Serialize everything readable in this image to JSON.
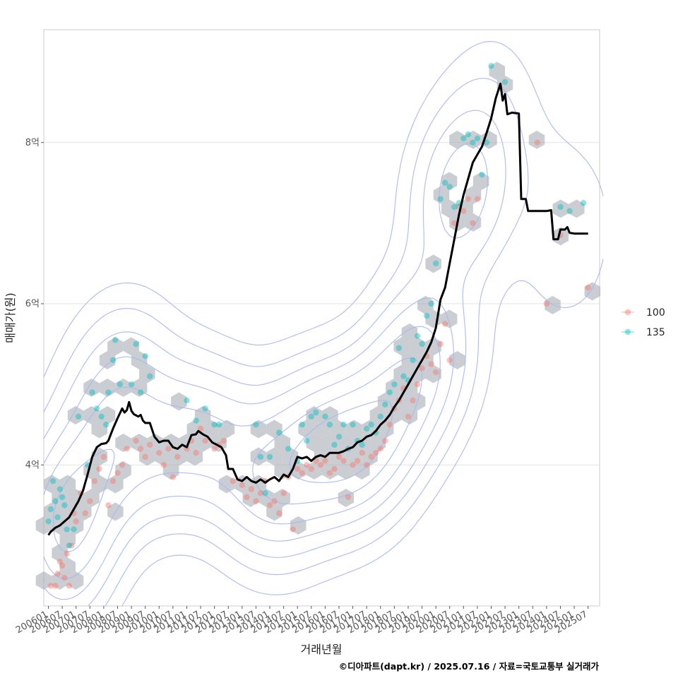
{
  "chart_data": {
    "type": "scatter",
    "title": "",
    "xlabel": "거래년월",
    "ylabel": "매매가(원)",
    "caption": "©디아파트(dapt.kr) / 2025.07.16 / 자료=국토교통부 실거래가",
    "x_tick_labels": [
      "200601",
      "200607",
      "200701",
      "200707",
      "200801",
      "200807",
      "200901",
      "200907",
      "201001",
      "201007",
      "201101",
      "201107",
      "201201",
      "201207",
      "201301",
      "201307",
      "201401",
      "201407",
      "201501",
      "201507",
      "201601",
      "201607",
      "201701",
      "201707",
      "201801",
      "201807",
      "201901",
      "201907",
      "202001",
      "202007",
      "202101",
      "202107",
      "202201",
      "202207",
      "202301",
      "202307",
      "202401",
      "202407",
      "202501",
      "202507"
    ],
    "x_range": [
      "2005-11",
      "2025-12"
    ],
    "y_ticks": [
      4,
      6,
      8
    ],
    "y_tick_labels": [
      "4억",
      "6억",
      "8억"
    ],
    "y_unit": "억원",
    "ylim": [
      2.25,
      9.4
    ],
    "grid": true,
    "legend_position": "right",
    "series": [
      {
        "name": "100",
        "color": "#F8766D",
        "points": [
          [
            "2006-02",
            2.5
          ],
          [
            "2006-04",
            2.5
          ],
          [
            "2006-05",
            2.65
          ],
          [
            "2006-06",
            2.8
          ],
          [
            "2006-07",
            2.75
          ],
          [
            "2006-08",
            2.6
          ],
          [
            "2006-09",
            2.9
          ],
          [
            "2006-10",
            2.5
          ],
          [
            "2006-11",
            3.0
          ],
          [
            "2006-12",
            3.4
          ],
          [
            "2007-01",
            3.3
          ],
          [
            "2007-03",
            3.65
          ],
          [
            "2007-05",
            3.4
          ],
          [
            "2007-07",
            3.55
          ],
          [
            "2007-09",
            3.8
          ],
          [
            "2007-11",
            3.95
          ],
          [
            "2008-01",
            4.1
          ],
          [
            "2008-03",
            3.5
          ],
          [
            "2008-05",
            3.8
          ],
          [
            "2008-07",
            3.9
          ],
          [
            "2008-09",
            4.0
          ],
          [
            "2008-11",
            4.2
          ],
          [
            "2009-03",
            4.3
          ],
          [
            "2009-05",
            4.2
          ],
          [
            "2009-07",
            4.1
          ],
          [
            "2009-09",
            4.25
          ],
          [
            "2010-01",
            4.15
          ],
          [
            "2010-03",
            4.0
          ],
          [
            "2010-05",
            4.2
          ],
          [
            "2010-07",
            3.85
          ],
          [
            "2010-09",
            4.1
          ],
          [
            "2011-01",
            4.2
          ],
          [
            "2011-03",
            4.3
          ],
          [
            "2011-05",
            4.15
          ],
          [
            "2011-07",
            4.45
          ],
          [
            "2011-09",
            4.3
          ],
          [
            "2012-01",
            4.2
          ],
          [
            "2012-03",
            4.25
          ],
          [
            "2012-05",
            4.3
          ],
          [
            "2012-09",
            3.8
          ],
          [
            "2013-01",
            3.75
          ],
          [
            "2013-03",
            3.6
          ],
          [
            "2013-05",
            3.7
          ],
          [
            "2013-07",
            3.55
          ],
          [
            "2013-09",
            3.65
          ],
          [
            "2013-11",
            3.8
          ],
          [
            "2014-01",
            3.5
          ],
          [
            "2014-03",
            3.55
          ],
          [
            "2014-05",
            3.4
          ],
          [
            "2014-07",
            3.65
          ],
          [
            "2014-09",
            3.85
          ],
          [
            "2014-11",
            3.2
          ],
          [
            "2015-01",
            3.95
          ],
          [
            "2015-03",
            3.9
          ],
          [
            "2015-05",
            4.0
          ],
          [
            "2015-07",
            3.95
          ],
          [
            "2015-09",
            4.05
          ],
          [
            "2015-11",
            4.0
          ],
          [
            "2016-01",
            4.05
          ],
          [
            "2016-03",
            3.9
          ],
          [
            "2016-05",
            3.95
          ],
          [
            "2016-07",
            4.1
          ],
          [
            "2016-09",
            4.05
          ],
          [
            "2016-11",
            3.6
          ],
          [
            "2017-01",
            4.0
          ],
          [
            "2017-03",
            4.05
          ],
          [
            "2017-05",
            4.15
          ],
          [
            "2017-07",
            4.0
          ],
          [
            "2017-09",
            4.1
          ],
          [
            "2017-11",
            4.15
          ],
          [
            "2018-01",
            4.2
          ],
          [
            "2018-03",
            4.3
          ],
          [
            "2018-05",
            4.5
          ],
          [
            "2018-07",
            4.7
          ],
          [
            "2018-09",
            4.8
          ],
          [
            "2018-11",
            4.95
          ],
          [
            "2019-01",
            4.6
          ],
          [
            "2019-03",
            4.8
          ],
          [
            "2019-05",
            5.0
          ],
          [
            "2019-07",
            5.2
          ],
          [
            "2019-09",
            5.35
          ],
          [
            "2019-11",
            5.25
          ],
          [
            "2020-01",
            5.15
          ],
          [
            "2020-03",
            5.5
          ],
          [
            "2020-05",
            5.75
          ],
          [
            "2020-07",
            5.3
          ],
          [
            "2020-09",
            7.0
          ],
          [
            "2020-11",
            7.2
          ],
          [
            "2021-01",
            7.15
          ],
          [
            "2021-03",
            7.3
          ],
          [
            "2021-05",
            7.0
          ],
          [
            "2021-07",
            7.3
          ],
          [
            "2023-09",
            8.0
          ],
          [
            "2024-01",
            6.0
          ],
          [
            "2024-07",
            6.85
          ],
          [
            "2025-07",
            6.2
          ]
        ]
      },
      {
        "name": "135",
        "color": "#00BFC4",
        "points": [
          [
            "2006-01",
            3.3
          ],
          [
            "2006-02",
            3.45
          ],
          [
            "2006-03",
            3.8
          ],
          [
            "2006-04",
            3.55
          ],
          [
            "2006-05",
            3.35
          ],
          [
            "2006-06",
            3.7
          ],
          [
            "2006-07",
            3.6
          ],
          [
            "2006-08",
            3.5
          ],
          [
            "2006-09",
            3.2
          ],
          [
            "2006-10",
            3.0
          ],
          [
            "2006-12",
            3.2
          ],
          [
            "2007-02",
            4.6
          ],
          [
            "2007-06",
            4.0
          ],
          [
            "2007-08",
            4.9
          ],
          [
            "2007-10",
            4.7
          ],
          [
            "2007-12",
            4.6
          ],
          [
            "2008-02",
            4.5
          ],
          [
            "2008-03",
            4.9
          ],
          [
            "2008-05",
            5.3
          ],
          [
            "2008-06",
            5.55
          ],
          [
            "2008-08",
            5.0
          ],
          [
            "2009-01",
            5.0
          ],
          [
            "2009-03",
            5.5
          ],
          [
            "2009-05",
            4.9
          ],
          [
            "2009-07",
            5.35
          ],
          [
            "2009-09",
            5.1
          ],
          [
            "2011-01",
            4.8
          ],
          [
            "2011-05",
            4.55
          ],
          [
            "2011-09",
            4.7
          ],
          [
            "2012-01",
            4.5
          ],
          [
            "2012-03",
            4.5
          ],
          [
            "2013-07",
            4.5
          ],
          [
            "2013-09",
            4.1
          ],
          [
            "2013-11",
            3.65
          ],
          [
            "2014-01",
            4.1
          ],
          [
            "2014-05",
            4.4
          ],
          [
            "2014-09",
            4.2
          ],
          [
            "2015-01",
            4.05
          ],
          [
            "2015-03",
            4.5
          ],
          [
            "2015-05",
            4.3
          ],
          [
            "2015-07",
            4.6
          ],
          [
            "2015-09",
            4.65
          ],
          [
            "2016-01",
            4.6
          ],
          [
            "2016-03",
            4.5
          ],
          [
            "2016-05",
            4.25
          ],
          [
            "2016-07",
            4.35
          ],
          [
            "2016-09",
            4.5
          ],
          [
            "2016-11",
            4.2
          ],
          [
            "2017-01",
            4.5
          ],
          [
            "2017-03",
            4.3
          ],
          [
            "2017-05",
            4.25
          ],
          [
            "2017-07",
            4.45
          ],
          [
            "2017-09",
            4.5
          ],
          [
            "2017-11",
            4.4
          ],
          [
            "2018-01",
            4.6
          ],
          [
            "2018-03",
            4.75
          ],
          [
            "2018-05",
            4.9
          ],
          [
            "2018-07",
            5.0
          ],
          [
            "2018-09",
            5.45
          ],
          [
            "2018-11",
            5.1
          ],
          [
            "2019-01",
            5.05
          ],
          [
            "2019-03",
            5.3
          ],
          [
            "2019-05",
            5.6
          ],
          [
            "2019-07",
            5.5
          ],
          [
            "2019-09",
            5.85
          ],
          [
            "2019-11",
            6.0
          ],
          [
            "2020-01",
            6.5
          ],
          [
            "2020-03",
            7.3
          ],
          [
            "2020-05",
            7.5
          ],
          [
            "2020-07",
            7.45
          ],
          [
            "2020-09",
            7.2
          ],
          [
            "2020-11",
            7.25
          ],
          [
            "2021-01",
            8.05
          ],
          [
            "2021-03",
            8.1
          ],
          [
            "2021-05",
            8.0
          ],
          [
            "2021-07",
            8.05
          ],
          [
            "2021-09",
            7.6
          ],
          [
            "2021-11",
            8.0
          ],
          [
            "2022-01",
            8.95
          ],
          [
            "2022-07",
            8.75
          ],
          [
            "2024-07",
            7.2
          ],
          [
            "2024-11",
            7.15
          ],
          [
            "2025-05",
            7.25
          ]
        ]
      }
    ],
    "trend_line": [
      [
        "2006-01",
        3.13
      ],
      [
        "2006-02",
        3.17
      ],
      [
        "2006-04",
        3.22
      ],
      [
        "2006-06",
        3.25
      ],
      [
        "2006-08",
        3.3
      ],
      [
        "2006-10",
        3.35
      ],
      [
        "2006-12",
        3.45
      ],
      [
        "2007-02",
        3.55
      ],
      [
        "2007-04",
        3.68
      ],
      [
        "2007-06",
        3.88
      ],
      [
        "2007-08",
        4.1
      ],
      [
        "2007-10",
        4.22
      ],
      [
        "2007-12",
        4.26
      ],
      [
        "2008-02",
        4.27
      ],
      [
        "2008-03",
        4.3
      ],
      [
        "2008-05",
        4.45
      ],
      [
        "2008-07",
        4.58
      ],
      [
        "2008-09",
        4.7
      ],
      [
        "2008-10",
        4.65
      ],
      [
        "2008-11",
        4.68
      ],
      [
        "2008-12",
        4.78
      ],
      [
        "2009-01",
        4.67
      ],
      [
        "2009-02",
        4.63
      ],
      [
        "2009-04",
        4.6
      ],
      [
        "2009-05",
        4.62
      ],
      [
        "2009-06",
        4.55
      ],
      [
        "2009-07",
        4.52
      ],
      [
        "2009-09",
        4.52
      ],
      [
        "2009-11",
        4.35
      ],
      [
        "2010-01",
        4.28
      ],
      [
        "2010-03",
        4.3
      ],
      [
        "2010-05",
        4.3
      ],
      [
        "2010-07",
        4.22
      ],
      [
        "2010-09",
        4.2
      ],
      [
        "2010-11",
        4.25
      ],
      [
        "2011-01",
        4.22
      ],
      [
        "2011-03",
        4.37
      ],
      [
        "2011-05",
        4.38
      ],
      [
        "2011-06",
        4.42
      ],
      [
        "2011-08",
        4.38
      ],
      [
        "2011-10",
        4.35
      ],
      [
        "2011-12",
        4.28
      ],
      [
        "2012-02",
        4.25
      ],
      [
        "2012-04",
        4.22
      ],
      [
        "2012-06",
        4.12
      ],
      [
        "2012-07",
        3.95
      ],
      [
        "2012-09",
        3.95
      ],
      [
        "2012-11",
        3.82
      ],
      [
        "2013-01",
        3.8
      ],
      [
        "2013-03",
        3.85
      ],
      [
        "2013-05",
        3.8
      ],
      [
        "2013-07",
        3.78
      ],
      [
        "2013-09",
        3.82
      ],
      [
        "2013-11",
        3.78
      ],
      [
        "2014-01",
        3.82
      ],
      [
        "2014-03",
        3.85
      ],
      [
        "2014-05",
        3.8
      ],
      [
        "2014-07",
        3.88
      ],
      [
        "2014-09",
        3.85
      ],
      [
        "2014-11",
        3.95
      ],
      [
        "2015-01",
        4.1
      ],
      [
        "2015-03",
        4.08
      ],
      [
        "2015-05",
        4.1
      ],
      [
        "2015-07",
        4.05
      ],
      [
        "2015-09",
        4.1
      ],
      [
        "2015-11",
        4.12
      ],
      [
        "2016-01",
        4.1
      ],
      [
        "2016-03",
        4.15
      ],
      [
        "2016-05",
        4.15
      ],
      [
        "2016-07",
        4.15
      ],
      [
        "2016-09",
        4.17
      ],
      [
        "2016-11",
        4.2
      ],
      [
        "2017-01",
        4.22
      ],
      [
        "2017-03",
        4.28
      ],
      [
        "2017-05",
        4.3
      ],
      [
        "2017-07",
        4.35
      ],
      [
        "2017-09",
        4.37
      ],
      [
        "2017-11",
        4.42
      ],
      [
        "2018-01",
        4.5
      ],
      [
        "2018-03",
        4.55
      ],
      [
        "2018-05",
        4.62
      ],
      [
        "2018-07",
        4.72
      ],
      [
        "2018-09",
        4.8
      ],
      [
        "2018-11",
        4.9
      ],
      [
        "2019-01",
        5.0
      ],
      [
        "2019-03",
        5.1
      ],
      [
        "2019-05",
        5.2
      ],
      [
        "2019-07",
        5.3
      ],
      [
        "2019-09",
        5.4
      ],
      [
        "2019-11",
        5.52
      ],
      [
        "2020-01",
        5.7
      ],
      [
        "2020-03",
        6.05
      ],
      [
        "2020-05",
        6.2
      ],
      [
        "2020-07",
        6.5
      ],
      [
        "2020-09",
        6.8
      ],
      [
        "2020-11",
        7.1
      ],
      [
        "2021-01",
        7.35
      ],
      [
        "2021-03",
        7.55
      ],
      [
        "2021-05",
        7.75
      ],
      [
        "2021-07",
        7.85
      ],
      [
        "2021-09",
        7.95
      ],
      [
        "2021-11",
        8.12
      ],
      [
        "2022-01",
        8.3
      ],
      [
        "2022-03",
        8.55
      ],
      [
        "2022-05",
        8.73
      ],
      [
        "2022-06",
        8.52
      ],
      [
        "2022-07",
        8.6
      ],
      [
        "2022-08",
        8.35
      ],
      [
        "2022-10",
        8.37
      ],
      [
        "2023-01",
        8.36
      ],
      [
        "2023-02",
        7.3
      ],
      [
        "2023-04",
        7.3
      ],
      [
        "2023-05",
        7.15
      ],
      [
        "2023-09",
        7.15
      ],
      [
        "2024-01",
        7.15
      ],
      [
        "2024-03",
        7.16
      ],
      [
        "2024-04",
        6.8
      ],
      [
        "2024-06",
        6.8
      ],
      [
        "2024-07",
        6.92
      ],
      [
        "2024-09",
        6.92
      ],
      [
        "2024-10",
        6.95
      ],
      [
        "2024-11",
        6.88
      ],
      [
        "2025-01",
        6.87
      ],
      [
        "2025-07",
        6.87
      ]
    ]
  }
}
